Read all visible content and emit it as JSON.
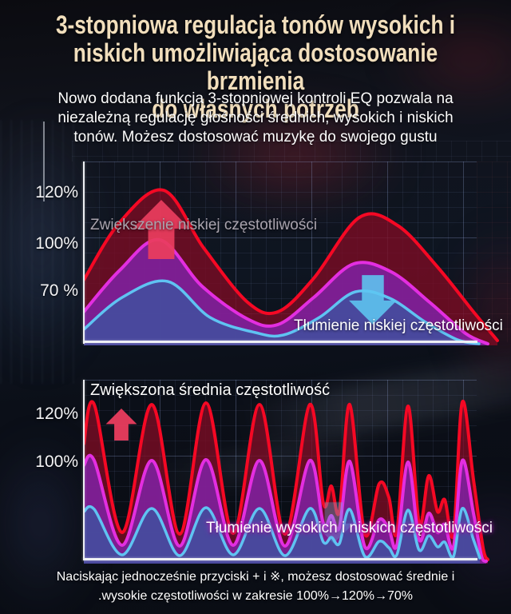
{
  "title_lines": [
    "3-stopniowa regulacja tonów wysokich i",
    "niskich umożliwiająca dostosowanie brzmienia",
    "do własnych potrzeb"
  ],
  "intro_lines": [
    "Nowo dodana funkcja 3-stopniowej kontroli EQ pozwala na",
    "niezależną regulację głośności średnich, wysokich i niskich",
    "tonów. Możesz dostosować muzykę do swojego gustu"
  ],
  "footer_lines": [
    "Naciskając jednocześnie przyciski + i ※, możesz dostosować średnie i",
    ".wysokie częstotliwości w zakresie 100%→120%→70%"
  ],
  "colors": {
    "title_text": "#f1debc",
    "body_text": "#ffffff",
    "red_stroke": "#f50824",
    "magenta_stroke": "#e32ee0",
    "blue_stroke": "#5fc3f2",
    "up_arrow": "#ea3d5e",
    "down_arrow": "#5ec7f2",
    "axis": "#eef0f4",
    "grid": "#5a6da8"
  },
  "chart_data": [
    {
      "type": "area",
      "description": "Low-frequency EQ: three stacked smooth waves (two humps) showing boosted 120%, normal 100% and attenuated 70% bass levels",
      "y_ticks": [
        "120%",
        "100%",
        "70 %"
      ],
      "x_axis_labels": [],
      "grid": true,
      "annotations": [
        {
          "text": "Zwiększenie niskiej częstotliwości",
          "arrow": "up"
        },
        {
          "text": "Tłumienie niskiej częstotliwości",
          "arrow": "down"
        }
      ],
      "series": [
        {
          "name": "boosted-low-120",
          "level": "120%",
          "stroke": "#f50824",
          "fill": "rgba(125,12,36,0.78)",
          "stroke_width": 4,
          "points": [
            [
              0,
              150
            ],
            [
              45,
              78
            ],
            [
              100,
              38
            ],
            [
              150,
              110
            ],
            [
              205,
              178
            ],
            [
              243,
              190
            ],
            [
              288,
              148
            ],
            [
              345,
              72
            ],
            [
              393,
              82
            ],
            [
              443,
              134
            ],
            [
              488,
              190
            ],
            [
              518,
              226
            ]
          ]
        },
        {
          "name": "normal-low-100",
          "level": "100%",
          "stroke": "#e32ee0",
          "fill": "rgba(128,34,165,0.85)",
          "stroke_width": 4,
          "points": [
            [
              0,
              190
            ],
            [
              45,
              138
            ],
            [
              95,
              100
            ],
            [
              148,
              158
            ],
            [
              205,
              199
            ],
            [
              243,
              206
            ],
            [
              288,
              172
            ],
            [
              338,
              130
            ],
            [
              385,
              140
            ],
            [
              433,
              178
            ],
            [
              478,
              217
            ],
            [
              506,
              230
            ]
          ]
        },
        {
          "name": "attenuated-low-70",
          "level": "70%",
          "stroke": "#5fc3f2",
          "fill": "rgba(66,78,158,0.88)",
          "stroke_width": 3.5,
          "points": [
            [
              0,
              212
            ],
            [
              48,
              172
            ],
            [
              105,
              152
            ],
            [
              158,
              197
            ],
            [
              215,
              216
            ],
            [
              250,
              219
            ],
            [
              295,
              197
            ],
            [
              340,
              165
            ],
            [
              383,
              173
            ],
            [
              428,
              203
            ],
            [
              468,
              225
            ],
            [
              495,
              230
            ]
          ]
        }
      ]
    },
    {
      "type": "area",
      "description": "Mid/high-frequency EQ: three stacked spiky waves; boosted mids reach 120%, normal 100%, attenuated highs/lows reduced toward 70%",
      "y_ticks": [
        "120%",
        "100%"
      ],
      "x_axis_labels": [],
      "grid": true,
      "annotations": [
        {
          "text": "Zwiększona średnia częstotliwość",
          "arrow": "up"
        },
        {
          "text": "Tłumienie wysokich i niskich częstotliwości",
          "arrow": "down"
        }
      ],
      "series": [
        {
          "name": "boosted-mid-120",
          "level": "120%",
          "stroke": "#f50824",
          "fill": "rgba(125,12,36,0.78)",
          "stroke_width": 4,
          "points": [
            [
              0,
              85
            ],
            [
              13,
              36
            ],
            [
              48,
              196
            ],
            [
              85,
              36
            ],
            [
              120,
              198
            ],
            [
              153,
              34
            ],
            [
              187,
              197
            ],
            [
              220,
              36
            ],
            [
              252,
              198
            ],
            [
              283,
              36
            ],
            [
              300,
              160
            ],
            [
              310,
              138
            ],
            [
              320,
              170
            ],
            [
              333,
              36
            ],
            [
              352,
              198
            ],
            [
              370,
              135
            ],
            [
              382,
              152
            ],
            [
              392,
              196
            ],
            [
              406,
              38
            ],
            [
              420,
              185
            ],
            [
              432,
              125
            ],
            [
              443,
              170
            ],
            [
              452,
              155
            ],
            [
              463,
              198
            ],
            [
              474,
              33
            ],
            [
              488,
              130
            ],
            [
              500,
              215
            ],
            [
              506,
              230
            ]
          ]
        },
        {
          "name": "normal-mid-100",
          "level": "100%",
          "stroke": "#e32ee0",
          "fill": "rgba(128,34,165,0.85)",
          "stroke_width": 4,
          "points": [
            [
              0,
              112
            ],
            [
              13,
              106
            ],
            [
              48,
              212
            ],
            [
              85,
              106
            ],
            [
              120,
              213
            ],
            [
              153,
              105
            ],
            [
              187,
              212
            ],
            [
              220,
              106
            ],
            [
              252,
              213
            ],
            [
              283,
              106
            ],
            [
              300,
              185
            ],
            [
              310,
              175
            ],
            [
              320,
              190
            ],
            [
              333,
              107
            ],
            [
              352,
              214
            ],
            [
              370,
              180
            ],
            [
              382,
              192
            ],
            [
              392,
              212
            ],
            [
              406,
              108
            ],
            [
              420,
              205
            ],
            [
              432,
              172
            ],
            [
              443,
              196
            ],
            [
              452,
              186
            ],
            [
              463,
              214
            ],
            [
              474,
              106
            ],
            [
              488,
              172
            ],
            [
              498,
              225
            ],
            [
              504,
              232
            ]
          ]
        },
        {
          "name": "attenuated-high-low-70",
          "level": "70%",
          "stroke": "#5fc3f2",
          "fill": "rgba(66,78,158,0.88)",
          "stroke_width": 3.5,
          "points": [
            [
              0,
              170
            ],
            [
              13,
              167
            ],
            [
              48,
              224
            ],
            [
              85,
              166
            ],
            [
              120,
              225
            ],
            [
              153,
              165
            ],
            [
              187,
              224
            ],
            [
              220,
              166
            ],
            [
              252,
              225
            ],
            [
              283,
              166
            ],
            [
              300,
              208
            ],
            [
              310,
              202
            ],
            [
              320,
              210
            ],
            [
              333,
              167
            ],
            [
              352,
              226
            ],
            [
              370,
              207
            ],
            [
              382,
              215
            ],
            [
              392,
              224
            ],
            [
              406,
              168
            ],
            [
              420,
              218
            ],
            [
              432,
              200
            ],
            [
              443,
              214
            ],
            [
              452,
              208
            ],
            [
              463,
              226
            ],
            [
              474,
              166
            ],
            [
              488,
              205
            ],
            [
              496,
              228
            ]
          ]
        }
      ]
    }
  ]
}
